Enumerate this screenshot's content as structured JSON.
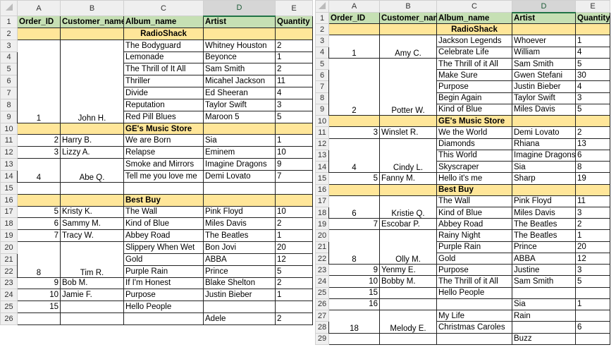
{
  "column_letters": [
    "A",
    "B",
    "C",
    "D",
    "E"
  ],
  "selected_column": "D",
  "colors": {
    "header_fill": "#c6e0b4",
    "section_fill": "#ffe699",
    "selected_col_accent": "#217346"
  },
  "sheets": [
    {
      "rows": [
        [
          "Order_ID",
          "Customer_name",
          "Album_name",
          "Artist",
          "Quantity"
        ],
        [
          "",
          "",
          "RadioShack",
          "",
          ""
        ],
        [
          "1",
          "John H.",
          "The Bodyguard",
          "Whitney Houston",
          "2"
        ],
        [
          "",
          "",
          "Lemonade",
          "Beyonce",
          "1"
        ],
        [
          "",
          "",
          "The Thrill of It All",
          "Sam Smith",
          "2"
        ],
        [
          "",
          "",
          "Thriller",
          "Micahel Jackson",
          "11"
        ],
        [
          "",
          "",
          "Divide",
          "Ed Sheeran",
          "4"
        ],
        [
          "",
          "",
          "Reputation",
          "Taylor Swift",
          "3"
        ],
        [
          "",
          "",
          "Red Pill Blues",
          "Maroon 5",
          "5"
        ],
        [
          "",
          "",
          "GE's Music Store",
          "",
          ""
        ],
        [
          "2",
          "Harry B.",
          "We are Born",
          "Sia",
          "1"
        ],
        [
          "3",
          "Lizzy A.",
          "Relapse",
          "Eminem",
          "10"
        ],
        [
          "4",
          "Abe Q.",
          "Smoke and Mirrors",
          "Imagine Dragons",
          "9"
        ],
        [
          "",
          "",
          "Tell me you love me",
          "Demi Lovato",
          "7"
        ],
        [
          "",
          "",
          "",
          "",
          ""
        ],
        [
          "",
          "",
          "Best Buy",
          "",
          ""
        ],
        [
          "5",
          "Kristy K.",
          "The Wall",
          "Pink Floyd",
          "10"
        ],
        [
          "6",
          "Sammy M.",
          "Kind of Blue",
          "Miles Davis",
          "2"
        ],
        [
          "7",
          "Tracy W.",
          "Abbey Road",
          "The Beatles",
          "1"
        ],
        [
          "8",
          "Tim R.",
          "Slippery When Wet",
          "Bon Jovi",
          "20"
        ],
        [
          "",
          "",
          "Gold",
          "ABBA",
          "12"
        ],
        [
          "",
          "",
          "Purple Rain",
          "Prince",
          "5"
        ],
        [
          "9",
          "Bob M.",
          "If I'm Honest",
          "Blake Shelton",
          "2"
        ],
        [
          "10",
          "Jamie F.",
          "Purpose",
          "Justin Bieber",
          "1"
        ],
        [
          "15",
          "",
          "Hello People",
          "",
          ""
        ],
        [
          "",
          "",
          "",
          "Adele",
          "2"
        ]
      ]
    },
    {
      "rows": [
        [
          "Order_ID",
          "Customer_name",
          "Album_name",
          "Artist",
          "Quantity"
        ],
        [
          "",
          "",
          "RadioShack",
          "",
          ""
        ],
        [
          "1",
          "Amy C.",
          "Jackson Legends",
          "Whoever",
          "1"
        ],
        [
          "",
          "",
          "Celebrate Life",
          "William",
          "4"
        ],
        [
          "2",
          "Potter W.",
          "The Thrill of it All",
          "Sam Smith",
          "5"
        ],
        [
          "",
          "",
          "Make Sure",
          "Gwen Stefani",
          "30"
        ],
        [
          "",
          "",
          "Purpose",
          "Justin Bieber",
          "4"
        ],
        [
          "",
          "",
          "Begin Again",
          "Taylor Swift",
          "3"
        ],
        [
          "",
          "",
          "Kind of Blue",
          "Miles Davis",
          "5"
        ],
        [
          "",
          "",
          "GE's Music Store",
          "",
          ""
        ],
        [
          "3",
          "Winslet R.",
          "We the World",
          "Demi Lovato",
          "2"
        ],
        [
          "4",
          "Cindy L.",
          "Diamonds",
          "Rhiana",
          "13"
        ],
        [
          "",
          "",
          "This World",
          "Imagine Dragons",
          "6"
        ],
        [
          "",
          "",
          "Skyscraper",
          "Sia",
          "8"
        ],
        [
          "5",
          "Fanny M.",
          "Hello it's me",
          "Sharp",
          "19"
        ],
        [
          "",
          "",
          "Best Buy",
          "",
          ""
        ],
        [
          "6",
          "Kristie Q.",
          "The Wall",
          "Pink Floyd",
          "11"
        ],
        [
          "",
          "",
          "Kind of Blue",
          "Miles Davis",
          "3"
        ],
        [
          "7",
          "Escobar P.",
          "Abbey Road",
          "The Beatles",
          "2"
        ],
        [
          "8",
          "Olly M.",
          "Rainy Night",
          "The Beatles",
          "1"
        ],
        [
          "",
          "",
          "Purple Rain",
          "Prince",
          "20"
        ],
        [
          "",
          "",
          "Gold",
          "ABBA",
          "12"
        ],
        [
          "9",
          "Yenmy E.",
          "Purpose",
          "Justine",
          "3"
        ],
        [
          "10",
          "Bobby M.",
          "The Thrill of it All",
          "Sam Smith",
          "5"
        ],
        [
          "15",
          "",
          "Hello People",
          "",
          ""
        ],
        [
          "16",
          "",
          "",
          "Sia",
          "1"
        ],
        [
          "18",
          "Melody E.",
          "My Life",
          "Rain",
          ""
        ],
        [
          "",
          "",
          "Christmas Caroles",
          "",
          "6"
        ],
        [
          "",
          "",
          "",
          "Buzz",
          ""
        ]
      ]
    }
  ]
}
